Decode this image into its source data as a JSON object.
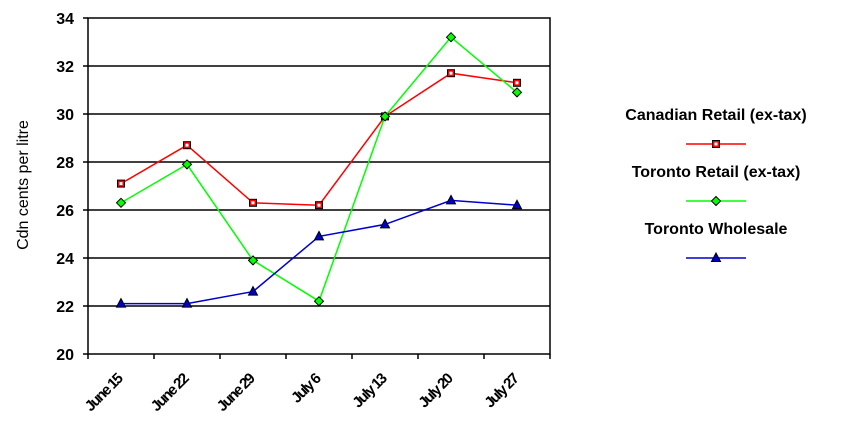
{
  "chart_data": {
    "type": "line",
    "ylabel": "Cdn cents per litre",
    "xlabel": "",
    "title": "",
    "categories": [
      "June 15",
      "June 22",
      "June 29",
      "July 6",
      "July 13",
      "July 20",
      "July 27"
    ],
    "ylim": [
      20,
      34
    ],
    "yticks": [
      "20",
      "22",
      "24",
      "26",
      "28",
      "30",
      "32",
      "34"
    ],
    "grid": "horizontal",
    "legend_position": "right",
    "series": [
      {
        "name": "Canadian Retail (ex-tax)",
        "color": "#ff0000",
        "marker": "square",
        "values": [
          27.1,
          28.7,
          26.3,
          26.2,
          29.9,
          31.7,
          31.3
        ]
      },
      {
        "name": "Toronto Retail (ex-tax)",
        "color": "#00ff00",
        "marker": "diamond",
        "values": [
          26.3,
          27.9,
          23.9,
          22.2,
          29.9,
          33.2,
          30.9
        ]
      },
      {
        "name": "Toronto Wholesale",
        "color": "#0000cc",
        "marker": "triangle",
        "values": [
          22.1,
          22.1,
          22.6,
          24.9,
          25.4,
          26.4,
          26.2
        ]
      }
    ]
  }
}
